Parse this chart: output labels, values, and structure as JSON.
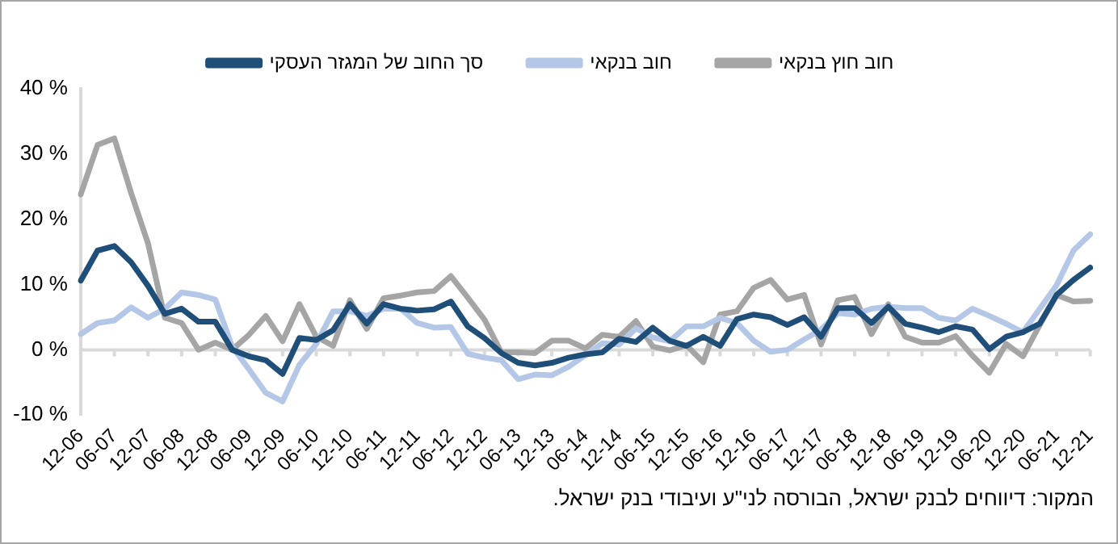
{
  "chart_data": {
    "type": "line",
    "categories": [
      "12-06",
      null,
      "06-07",
      null,
      "12-07",
      null,
      "06-08",
      null,
      "12-08",
      null,
      "06-09",
      null,
      "12-09",
      null,
      "06-10",
      null,
      "12-10",
      null,
      "06-11",
      null,
      "12-11",
      null,
      "06-12",
      null,
      "12-12",
      null,
      "06-13",
      null,
      "12-13",
      null,
      "06-14",
      null,
      "12-14",
      null,
      "06-15",
      null,
      "12-15",
      null,
      "06-16",
      null,
      "12-16",
      null,
      "06-17",
      null,
      "12-17",
      null,
      "06-18",
      null,
      "12-18",
      null,
      "06-19",
      null,
      "12-19",
      null,
      "06-20",
      null,
      "12-20",
      null,
      "06-21",
      null,
      "12-21"
    ],
    "series": [
      {
        "name": "סך החוב של המגזר העסקי",
        "color": "#1f4e79",
        "values": [
          10.6,
          15.2,
          15.9,
          13.4,
          9.8,
          5.5,
          6.3,
          4.3,
          4.3,
          0,
          -1.0,
          -1.6,
          -3.7,
          1.8,
          1.5,
          3.0,
          7.0,
          4.0,
          7.0,
          6.3,
          6.0,
          6.2,
          7.4,
          3.6,
          1.8,
          -0.5,
          -2.0,
          -2.4,
          -2.0,
          -1.2,
          -0.7,
          -0.4,
          1.7,
          1.2,
          3.4,
          1.4,
          0.6,
          2.0,
          0.6,
          4.7,
          5.4,
          5.0,
          3.8,
          5.0,
          2.0,
          6.4,
          6.4,
          4.1,
          6.6,
          4.0,
          3.4,
          2.7,
          3.6,
          3.1,
          0.1,
          2.0,
          2.7,
          4.0,
          8.4,
          10.7,
          12.6
        ]
      },
      {
        "name": "חוב בנקאי",
        "color": "#b4c7e7",
        "values": [
          2.4,
          4.1,
          4.5,
          6.5,
          4.9,
          6.3,
          8.8,
          8.4,
          7.7,
          0.5,
          -3.0,
          -6.6,
          -7.9,
          -2.3,
          0.9,
          5.9,
          5.9,
          5.2,
          6.3,
          6.3,
          4.1,
          3.4,
          3.5,
          -0.6,
          -1.2,
          -1.6,
          -4.5,
          -3.8,
          -3.9,
          -2.6,
          -0.8,
          1.0,
          0.8,
          3.3,
          1.9,
          1.3,
          3.6,
          3.6,
          4.9,
          4.1,
          1.4,
          -0.3,
          0,
          1.6,
          3.1,
          5.6,
          5.4,
          6.3,
          6.6,
          6.4,
          6.4,
          4.9,
          4.5,
          6.3,
          5.2,
          4.0,
          2.7,
          6.3,
          9.9,
          15.2,
          17.7
        ]
      },
      {
        "name": "חוב חוץ בנקאי",
        "color": "#a5a5a5",
        "values": [
          23.8,
          31.4,
          32.4,
          24.0,
          16.3,
          4.9,
          4.1,
          0,
          1.1,
          0,
          2.3,
          5.2,
          1.3,
          7.0,
          2.0,
          0.6,
          7.6,
          3.2,
          7.9,
          8.3,
          8.8,
          9.0,
          11.3,
          8.0,
          4.6,
          -0.4,
          -0.4,
          -0.5,
          1.4,
          1.4,
          0.2,
          2.3,
          2.0,
          4.4,
          0.5,
          -0.1,
          0.7,
          -1.9,
          5.4,
          5.9,
          9.5,
          10.7,
          7.7,
          8.4,
          0.8,
          7.6,
          8.1,
          2.4,
          7.0,
          2.0,
          1.1,
          1.1,
          2.1,
          -0.9,
          -3.5,
          0.9,
          -1.0,
          3.8,
          8.4,
          7.4,
          7.5
        ]
      }
    ],
    "ylim": [
      -10,
      40
    ],
    "yticks": [
      {
        "value": -10,
        "label": "-10 %"
      },
      {
        "value": 0,
        "label": "0 %"
      },
      {
        "value": 10,
        "label": "10 %"
      },
      {
        "value": 20,
        "label": "20 %"
      },
      {
        "value": 30,
        "label": "30 %"
      },
      {
        "value": 40,
        "label": "40 %"
      }
    ],
    "ref_lines": [
      {
        "axis": "y",
        "value": 0,
        "color": "#d9d9d9"
      }
    ],
    "grid": false,
    "legend": "top",
    "marker": "none",
    "line_style": "solid",
    "annotations": [
      "המקור: דיווחים לבנק ישראל, הבורסה לני\"ע ועיבודי בנק ישראל."
    ]
  }
}
